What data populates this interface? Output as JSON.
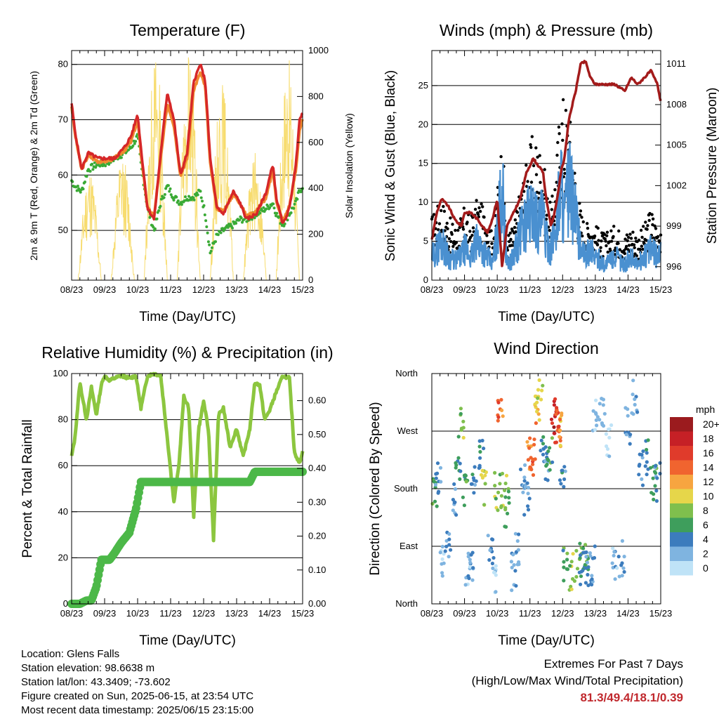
{
  "panels": {
    "temperature": {
      "title": "Temperature (F)",
      "xlabel": "Time (Day/UTC)",
      "ylabel_left": "2m & 9m T (Red, Orange) & 2m Td (Green)",
      "ylabel_right": "Solar Insolation (Yellow)"
    },
    "winds": {
      "title": "Winds (mph) & Pressure (mb)",
      "xlabel": "Time (Day/UTC)",
      "ylabel_left": "Sonic Wind & Gust (Blue, Black)",
      "ylabel_right": "Station Pressure (Maroon)"
    },
    "humidity": {
      "title": "Relative Humidity (%) & Precipitation (in)",
      "xlabel": "Time (Day/UTC)",
      "ylabel_left": "Percent & Total Rainfall"
    },
    "direction": {
      "title": "Wind Direction",
      "xlabel": "Time (Day/UTC)",
      "ylabel_left": "Direction (Colored By Speed)"
    }
  },
  "time_ticks": [
    "08/23",
    "09/23",
    "10/23",
    "11/23",
    "12/23",
    "13/23",
    "14/23",
    "15/23"
  ],
  "legend": {
    "unit": "mph",
    "labels": [
      "20+",
      "18",
      "16",
      "14",
      "12",
      "10",
      "8",
      "6",
      "4",
      "2",
      "0"
    ],
    "colors": [
      "#9b1b1e",
      "#c62026",
      "#e03b2b",
      "#f0642f",
      "#f7a540",
      "#e6d64a",
      "#7fbf4d",
      "#3e9e5c",
      "#3c7cbd",
      "#7fb4e0",
      "#bfe3f7"
    ]
  },
  "info": {
    "location": "Location: Glens Falls",
    "elevation": "Station elevation: 98.6638 m",
    "latlon": "Station lat/lon: 43.3409; -73.602",
    "created": "Figure created on Sun, 2025-06-15, at 23:54 UTC",
    "recent": "Most recent data timestamp: 2025/06/15 23:15:00"
  },
  "extremes": {
    "line1": "Extremes For Past 7 Days",
    "line2": "(High/Low/Max Wind/Total Precipitation)",
    "values": "81.3/49.4/18.1/0.39"
  },
  "colors": {
    "temp_2m": "#d62728",
    "temp_9m": "#f0892f",
    "dewpoint": "#3aaa35",
    "solar": "#f7dc6f",
    "gust": "#000000",
    "wind": "#4a90d0",
    "pressure": "#a31b1b",
    "rh": "#8cc63f",
    "precip": "#4cb848"
  },
  "chart_data": [
    {
      "id": "temperature",
      "type": "line",
      "title": "Temperature (F)",
      "xlabel": "Time (Day/UTC)",
      "ylabel": "2m & 9m T (Red, Orange) & 2m Td (Green)",
      "ylabel_right": "Solar Insolation (Yellow)",
      "x_ticks": [
        "08/23",
        "09/23",
        "10/23",
        "11/23",
        "12/23",
        "13/23",
        "14/23",
        "15/23"
      ],
      "ylim": [
        41,
        82.5
      ],
      "y_ticks": [
        50,
        60,
        70,
        80
      ],
      "ylim_right": [
        0,
        1000
      ],
      "y_ticks_right": [
        0,
        200,
        400,
        600,
        800,
        1000
      ],
      "grid": true,
      "x": [
        0,
        0.1,
        0.3,
        0.5,
        0.8,
        1.0,
        1.3,
        1.6,
        1.8,
        2.0,
        2.1,
        2.3,
        2.5,
        2.7,
        2.9,
        3.1,
        3.3,
        3.5,
        3.7,
        3.9,
        4.05,
        4.2,
        4.4,
        4.6,
        4.9,
        5.1,
        5.3,
        5.6,
        5.9,
        6.1,
        6.2,
        6.4,
        6.6,
        6.8,
        6.9,
        7.0
      ],
      "series": [
        {
          "name": "2m T",
          "values": [
            73,
            68,
            61,
            64,
            63,
            63,
            63,
            65,
            67,
            71,
            65,
            54,
            52,
            64,
            75,
            70,
            60,
            64,
            77,
            80,
            77,
            63,
            54,
            53,
            57,
            55,
            52,
            53,
            57,
            62,
            56,
            51,
            54,
            62,
            70,
            71
          ]
        },
        {
          "name": "9m T",
          "values": [
            72.5,
            67.5,
            61,
            63.5,
            62.5,
            62.5,
            63,
            64.5,
            66,
            70,
            64,
            54,
            52.5,
            63,
            73,
            69,
            60,
            63,
            75.5,
            78.5,
            76,
            62,
            54,
            53.5,
            56.5,
            55,
            52.5,
            53.5,
            56,
            61,
            55.5,
            51.5,
            54.5,
            61,
            68,
            70
          ]
        },
        {
          "name": "2m Td",
          "values": [
            59,
            58,
            57,
            61,
            62,
            62,
            63,
            64,
            65,
            67,
            62,
            54,
            50,
            55,
            58,
            56,
            55,
            56,
            56,
            57,
            53,
            46,
            49,
            50,
            51,
            52,
            52,
            53,
            54,
            55,
            53,
            51,
            53,
            55,
            57,
            58
          ]
        }
      ],
      "solar_peaks": [
        {
          "day": 0.55,
          "max": 500
        },
        {
          "day": 1.55,
          "max": 550
        },
        {
          "day": 2.55,
          "max": 1000
        },
        {
          "day": 3.55,
          "max": 980
        },
        {
          "day": 4.55,
          "max": 880
        },
        {
          "day": 5.55,
          "max": 560
        },
        {
          "day": 6.55,
          "max": 980
        }
      ]
    },
    {
      "id": "winds",
      "type": "line",
      "title": "Winds (mph) & Pressure (mb)",
      "xlabel": "Time (Day/UTC)",
      "ylabel": "Sonic Wind & Gust (Blue, Black)",
      "ylabel_right": "Station Pressure (Maroon)",
      "x_ticks": [
        "08/23",
        "09/23",
        "10/23",
        "11/23",
        "12/23",
        "13/23",
        "14/23",
        "15/23"
      ],
      "ylim": [
        0,
        29.5
      ],
      "y_ticks": [
        0,
        5,
        10,
        15,
        20,
        25
      ],
      "ylim_right": [
        995,
        1012
      ],
      "y_ticks_right": [
        996,
        999,
        1002,
        1005,
        1008,
        1011
      ],
      "grid": true,
      "x": [
        0,
        0.15,
        0.3,
        0.5,
        0.7,
        0.9,
        1.0,
        1.2,
        1.4,
        1.55,
        1.7,
        1.85,
        2.0,
        2.15,
        2.3,
        2.5,
        2.7,
        2.9,
        3.1,
        3.25,
        3.4,
        3.5,
        3.65,
        3.8,
        3.95,
        4.05,
        4.2,
        4.4,
        4.55,
        4.7,
        4.85,
        5.0,
        5.3,
        5.6,
        5.9,
        6.1,
        6.3,
        6.5,
        6.7,
        6.9,
        7.0
      ],
      "series": [
        {
          "name": "Pressure",
          "values": [
            998,
            1000,
            1001,
            1000.5,
            999.5,
            999,
            1000,
            1000,
            999.5,
            999,
            998.5,
            999.5,
            1001,
            996,
            999,
            1000,
            1001,
            1003,
            1004,
            1003.5,
            1003,
            1001,
            999,
            1000.5,
            1003,
            1004,
            1007,
            1009,
            1011,
            1011.2,
            1010,
            1009.5,
            1009.5,
            1009.5,
            1009,
            1010,
            1009.5,
            1010,
            1010.5,
            1009.5,
            1008.2
          ]
        },
        {
          "name": "Wind",
          "values": [
            3,
            4,
            5,
            3,
            2.5,
            3,
            4,
            3,
            5,
            4,
            3,
            2,
            6,
            12,
            2,
            3,
            6,
            8,
            9,
            7,
            8,
            5,
            4,
            7,
            13,
            8,
            12,
            8,
            4,
            3,
            4,
            3,
            2,
            3,
            2,
            3,
            2,
            3,
            4,
            3,
            4
          ]
        },
        {
          "name": "Gust",
          "values": [
            7,
            8,
            9,
            7,
            6,
            7,
            8,
            7,
            9,
            8,
            7,
            5,
            10,
            16,
            5,
            6,
            10,
            13,
            16,
            15,
            14,
            10,
            8,
            13,
            21,
            20,
            19,
            12,
            8,
            6,
            7,
            6,
            5,
            6,
            5,
            6,
            5,
            6,
            8,
            6,
            7
          ]
        }
      ]
    },
    {
      "id": "humidity",
      "type": "line",
      "title": "Relative Humidity (%) & Precipitation (in)",
      "xlabel": "Time (Day/UTC)",
      "ylabel": "Percent & Total Rainfall",
      "x_ticks": [
        "08/23",
        "09/23",
        "10/23",
        "11/23",
        "12/23",
        "13/23",
        "14/23",
        "15/23"
      ],
      "ylim": [
        0,
        100
      ],
      "y_ticks": [
        0,
        20,
        40,
        60,
        80,
        100
      ],
      "ylim_right": [
        0,
        0.68
      ],
      "y_ticks_right": [
        0.0,
        0.1,
        0.2,
        0.3,
        0.4,
        0.5,
        0.6
      ],
      "y_ticks_right_labels": [
        "0.00",
        "0.10",
        "0.20",
        "0.30",
        "0.40",
        "0.50",
        "0.60"
      ],
      "grid": true,
      "x": [
        0,
        0.1,
        0.25,
        0.45,
        0.6,
        0.75,
        0.9,
        1.0,
        1.15,
        1.3,
        1.5,
        1.75,
        1.95,
        2.1,
        2.3,
        2.5,
        2.7,
        2.9,
        3.1,
        3.25,
        3.4,
        3.55,
        3.7,
        3.85,
        4.0,
        4.15,
        4.3,
        4.45,
        4.6,
        4.8,
        5.0,
        5.2,
        5.4,
        5.55,
        5.7,
        5.85,
        6.0,
        6.2,
        6.4,
        6.6,
        6.75,
        6.9,
        7.0
      ],
      "series": [
        {
          "name": "RH",
          "values": [
            64,
            72,
            96,
            80,
            94,
            82,
            95,
            99,
            97,
            98,
            99,
            98,
            99,
            85,
            99,
            100,
            99,
            72,
            44,
            60,
            90,
            85,
            38,
            76,
            88,
            75,
            28,
            82,
            85,
            68,
            76,
            64,
            76,
            96,
            95,
            80,
            84,
            92,
            99,
            98,
            66,
            61,
            66
          ]
        },
        {
          "name": "Precip",
          "values": [
            0,
            0,
            0,
            0.01,
            0.01,
            0.05,
            0.13,
            0.13,
            0.13,
            0.15,
            0.18,
            0.21,
            0.28,
            0.36,
            0.36,
            0.36,
            0.36,
            0.36,
            0.36,
            0.36,
            0.36,
            0.36,
            0.36,
            0.36,
            0.36,
            0.36,
            0.36,
            0.36,
            0.36,
            0.36,
            0.36,
            0.36,
            0.36,
            0.39,
            0.39,
            0.39,
            0.39,
            0.39,
            0.39,
            0.39,
            0.39,
            0.39,
            0.39
          ]
        }
      ]
    },
    {
      "id": "direction",
      "type": "scatter",
      "title": "Wind Direction",
      "xlabel": "Time (Day/UTC)",
      "ylabel": "Direction (Colored By Speed)",
      "x_ticks": [
        "08/23",
        "09/23",
        "10/23",
        "11/23",
        "12/23",
        "13/23",
        "14/23",
        "15/23"
      ],
      "y_ticks": [
        0,
        90,
        180,
        270,
        360
      ],
      "y_tick_labels": [
        "North",
        "East",
        "South",
        "West",
        "North"
      ],
      "ylim": [
        0,
        360
      ],
      "grid": true,
      "color_scale_unit": "mph",
      "x": [
        0.1,
        0.2,
        0.3,
        0.5,
        0.7,
        0.8,
        0.9,
        1.0,
        1.1,
        1.2,
        1.3,
        1.5,
        1.6,
        1.8,
        1.9,
        2.0,
        2.1,
        2.2,
        2.3,
        2.5,
        2.6,
        2.8,
        2.9,
        3.0,
        3.1,
        3.2,
        3.3,
        3.4,
        3.5,
        3.6,
        3.7,
        3.8,
        3.85,
        3.9,
        4.0,
        4.1,
        4.3,
        4.5,
        4.6,
        4.7,
        4.8,
        4.9,
        5.0,
        5.2,
        5.4,
        5.6,
        5.8,
        6.0,
        6.2,
        6.4,
        6.6,
        6.8,
        6.9
      ],
      "values": [
        175,
        190,
        60,
        90,
        165,
        210,
        280,
        175,
        50,
        60,
        200,
        230,
        180,
        80,
        40,
        175,
        290,
        180,
        150,
        50,
        80,
        200,
        160,
        240,
        230,
        300,
        320,
        250,
        220,
        230,
        290,
        300,
        280,
        270,
        210,
        60,
        50,
        70,
        60,
        80,
        50,
        60,
        290,
        300,
        250,
        60,
        70,
        280,
        320,
        210,
        230,
        190,
        200
      ],
      "speeds": [
        6,
        4,
        2,
        3,
        3,
        5,
        8,
        6,
        2,
        3,
        4,
        4,
        9,
        3,
        1,
        8,
        14,
        9,
        7,
        3,
        2,
        3,
        3,
        13,
        14,
        12,
        10,
        4,
        4,
        6,
        18,
        16,
        14,
        12,
        4,
        6,
        8,
        7,
        5,
        6,
        4,
        3,
        2,
        2,
        1,
        2,
        3,
        3,
        2,
        4,
        5,
        6,
        4
      ]
    }
  ]
}
